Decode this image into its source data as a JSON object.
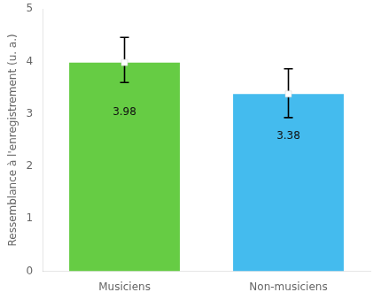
{
  "chart_data": {
    "type": "bar",
    "categories": [
      "Musiciens",
      "Non-musiciens"
    ],
    "values": [
      3.98,
      3.38
    ],
    "errors_up": [
      0.48,
      0.48
    ],
    "errors_down": [
      0.38,
      0.45
    ],
    "colors": [
      "#66cc44",
      "#44bbee"
    ],
    "ylabel": "Ressemblance à l'enregistrement (u. a.)",
    "ylim": [
      0,
      5
    ],
    "yticks": [
      0,
      1,
      2,
      3,
      4,
      5
    ],
    "grid": false,
    "data_labels": true,
    "marker": "square"
  }
}
